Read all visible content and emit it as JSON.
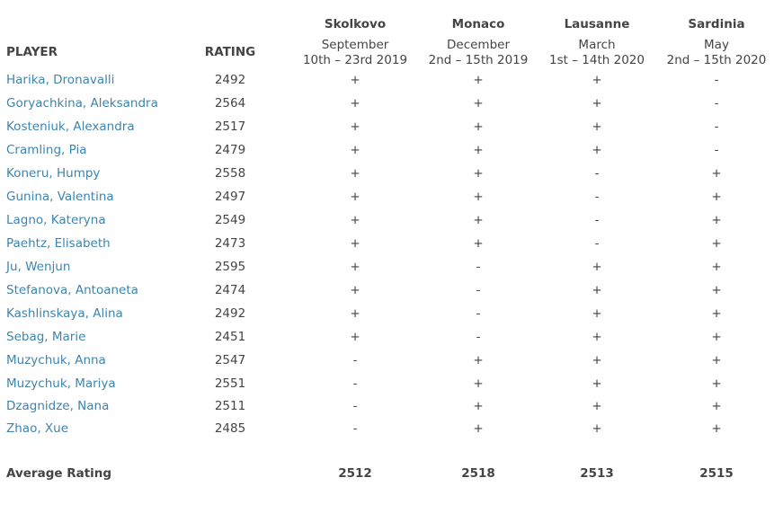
{
  "header": {
    "player": "PLAYER",
    "rating": "RATING",
    "venues": [
      {
        "name": "Skolkovo",
        "month": "September",
        "dates": "10th – 23rd 2019"
      },
      {
        "name": "Monaco",
        "month": "December",
        "dates": "2nd – 15th 2019"
      },
      {
        "name": "Lausanne",
        "month": "March",
        "dates": "1st – 14th 2020"
      },
      {
        "name": "Sardinia",
        "month": "May",
        "dates": "2nd – 15th 2020"
      }
    ]
  },
  "rows": [
    [
      "Harika, Dronavalli",
      2492,
      "+",
      "+",
      "+",
      "-"
    ],
    [
      "Goryachkina, Aleksandra",
      2564,
      "+",
      "+",
      "+",
      "-"
    ],
    [
      "Kosteniuk, Alexandra",
      2517,
      "+",
      "+",
      "+",
      "-"
    ],
    [
      "Cramling, Pia",
      2479,
      "+",
      "+",
      "+",
      "-"
    ],
    [
      "Koneru, Humpy",
      2558,
      "+",
      "+",
      "-",
      "+"
    ],
    [
      "Gunina, Valentina",
      2497,
      "+",
      "+",
      "-",
      "+"
    ],
    [
      "Lagno, Kateryna",
      2549,
      "+",
      "+",
      "-",
      "+"
    ],
    [
      "Paehtz, Elisabeth",
      2473,
      "+",
      "+",
      "-",
      "+"
    ],
    [
      "Ju, Wenjun",
      2595,
      "+",
      "-",
      "+",
      "+"
    ],
    [
      "Stefanova, Antoaneta",
      2474,
      "+",
      "-",
      "+",
      "+"
    ],
    [
      "Kashlinskaya, Alina",
      2492,
      "+",
      "-",
      "+",
      "+"
    ],
    [
      "Sebag, Marie",
      2451,
      "+",
      "-",
      "+",
      "+"
    ],
    [
      "Muzychuk, Anna",
      2547,
      "-",
      "+",
      "+",
      "+"
    ],
    [
      "Muzychuk, Mariya",
      2551,
      "-",
      "+",
      "+",
      "+"
    ],
    [
      "Dzagnidze, Nana",
      2511,
      "-",
      "+",
      "+",
      "+"
    ],
    [
      "Zhao, Xue",
      2485,
      "-",
      "+",
      "+",
      "+"
    ]
  ],
  "footer": {
    "label": "Average Rating",
    "averages": [
      2512,
      2518,
      2513,
      2515
    ]
  }
}
